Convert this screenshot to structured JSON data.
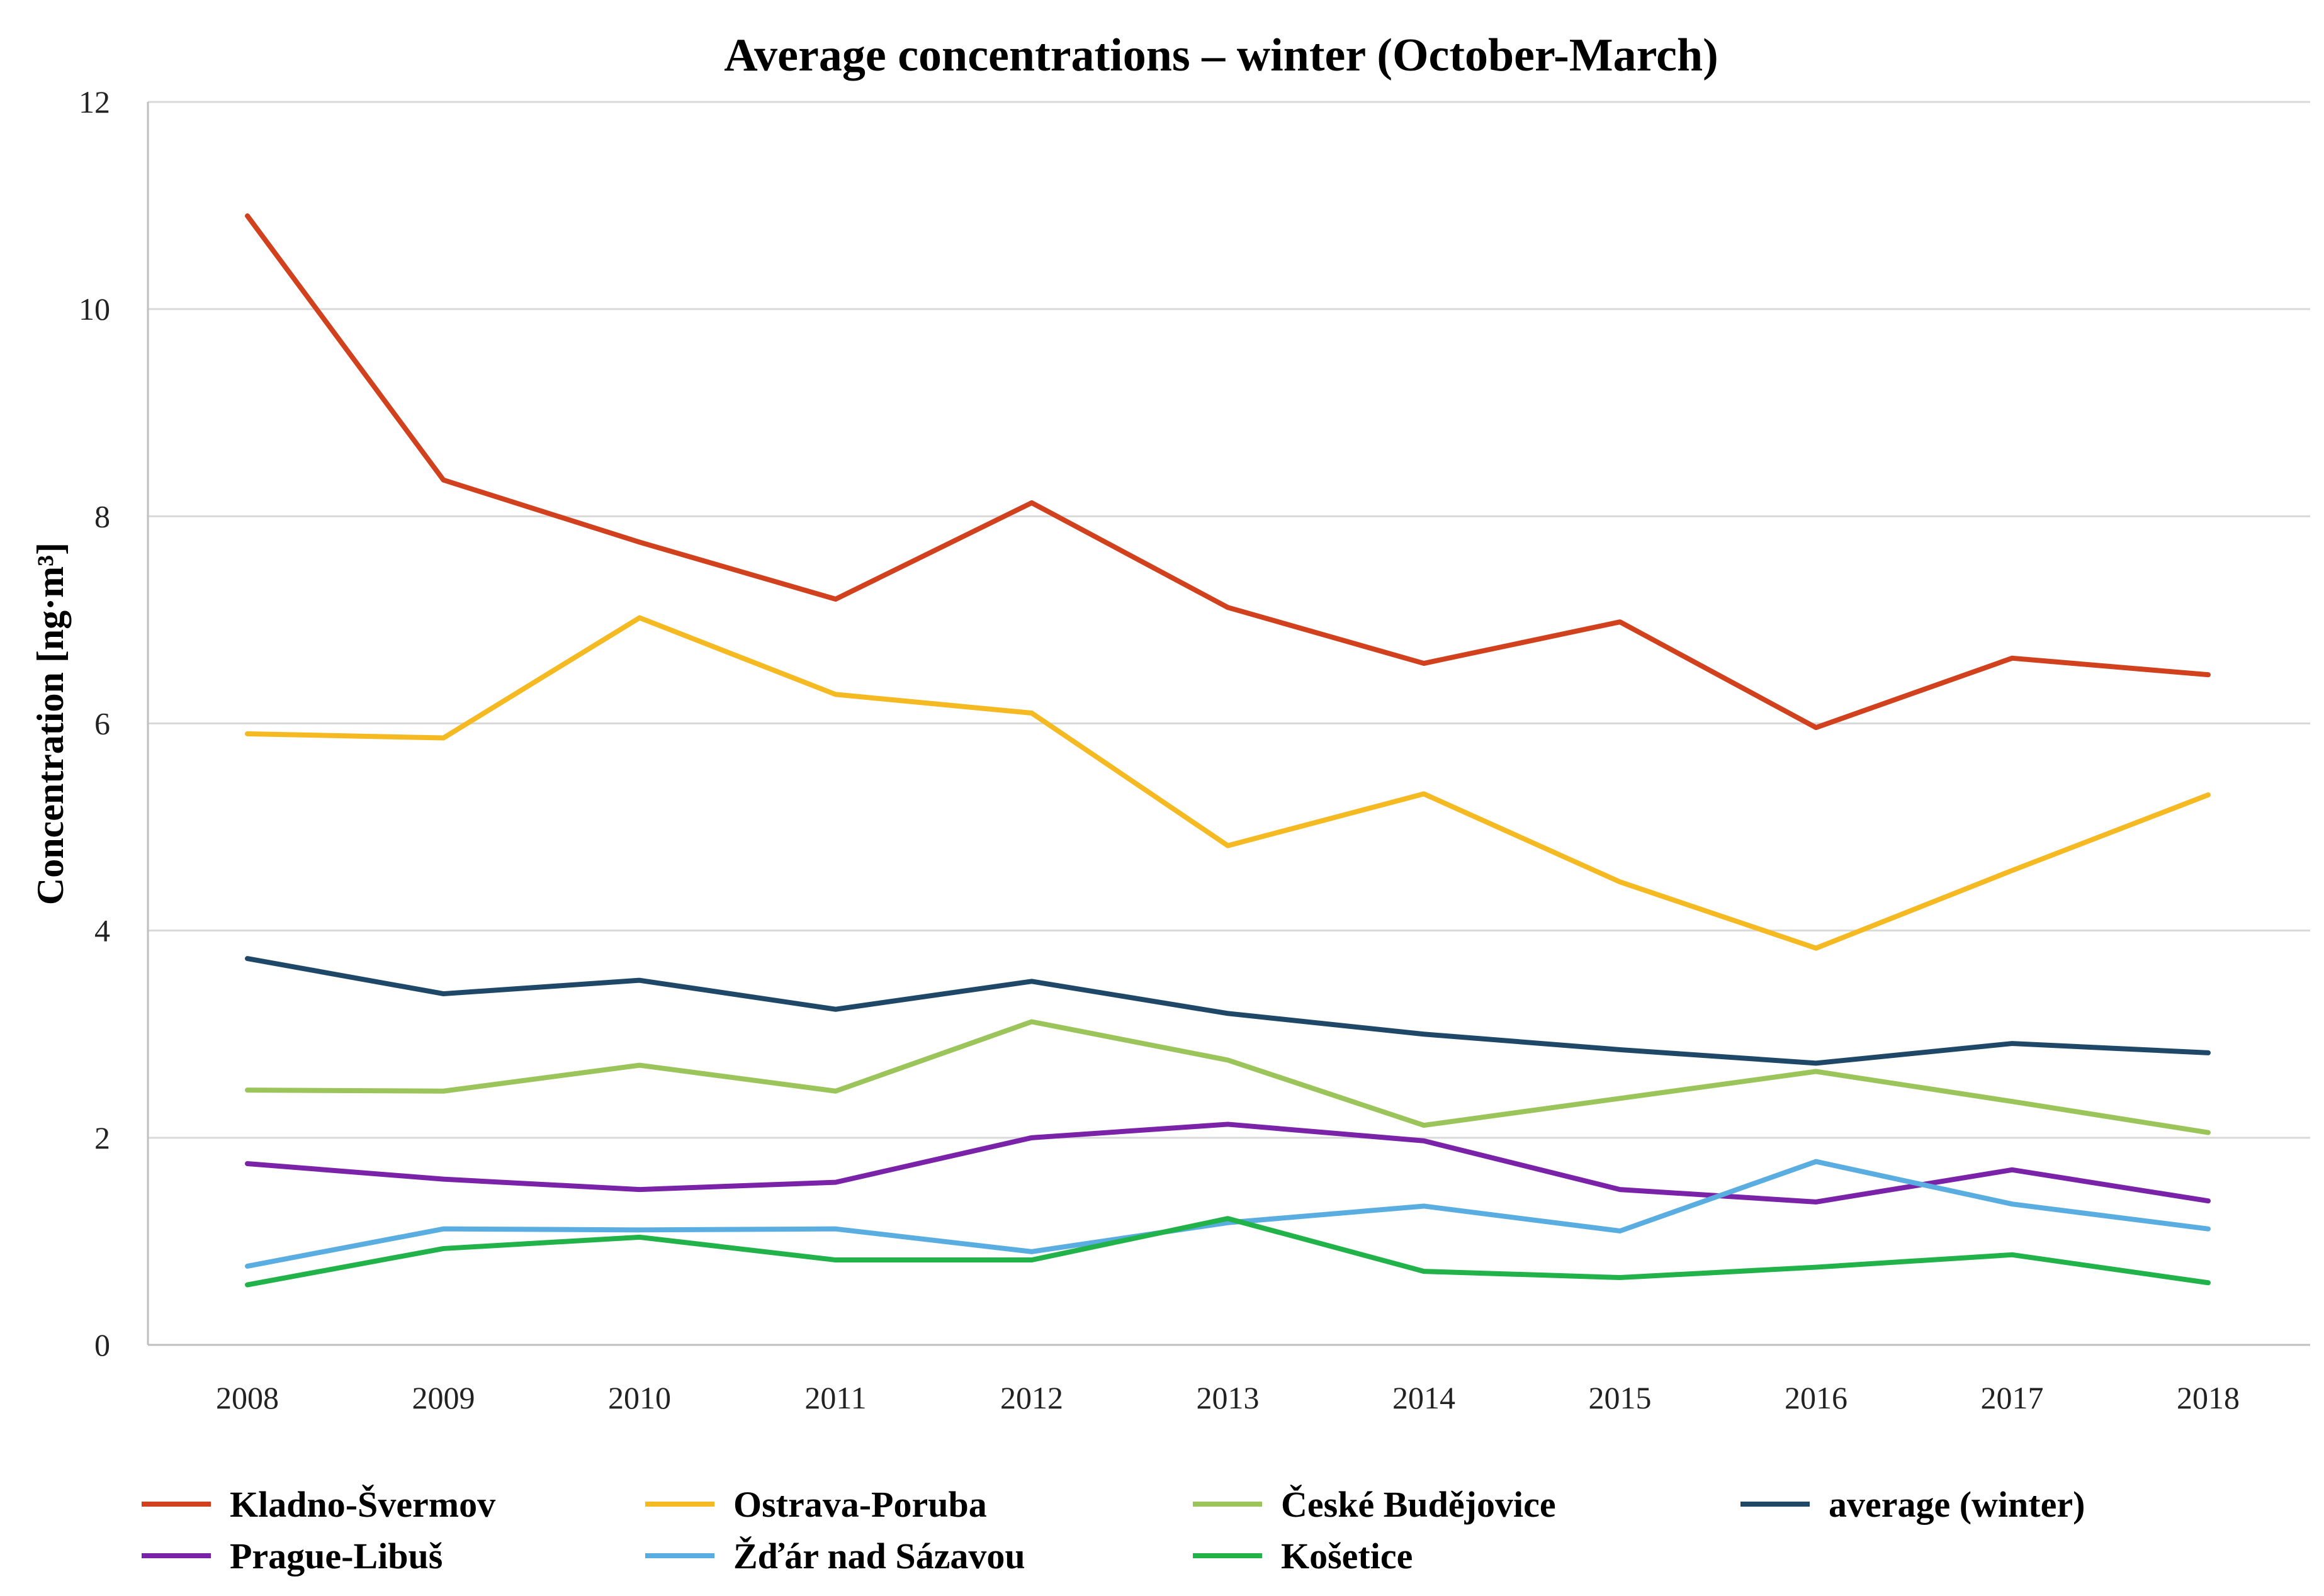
{
  "chart_data": {
    "type": "line",
    "title": "Average concentrations – winter (October-March)",
    "xlabel": "",
    "ylabel": "Concentration [ng·m³]",
    "ylim": [
      0,
      12
    ],
    "yticks": [
      0,
      2,
      4,
      6,
      8,
      10,
      12
    ],
    "grid": true,
    "legend_position": "bottom",
    "categories": [
      "2008",
      "2009",
      "2010",
      "2011",
      "2012",
      "2013",
      "2014",
      "2015",
      "2016",
      "2017",
      "2018"
    ],
    "series": [
      {
        "name": "Kladno-Švermov",
        "color": "#d2411d",
        "values": [
          10.9,
          8.35,
          7.75,
          7.2,
          8.13,
          7.12,
          6.58,
          6.98,
          5.96,
          6.63,
          6.47
        ]
      },
      {
        "name": "Ostrava-Poruba",
        "color": "#f5b922",
        "values": [
          5.9,
          5.86,
          7.02,
          6.28,
          6.1,
          4.82,
          5.32,
          4.47,
          3.83,
          4.58,
          5.31
        ]
      },
      {
        "name": "České Budějovice",
        "color": "#9bc55a",
        "values": [
          2.46,
          2.45,
          2.7,
          2.45,
          3.12,
          2.75,
          2.12,
          2.38,
          2.64,
          2.35,
          2.05
        ]
      },
      {
        "name": "average (winter)",
        "color": "#1f4868",
        "values": [
          3.73,
          3.39,
          3.52,
          3.24,
          3.51,
          3.2,
          3.0,
          2.85,
          2.72,
          2.91,
          2.82
        ]
      },
      {
        "name": "Prague-Libuš",
        "color": "#7a22a8",
        "values": [
          1.75,
          1.6,
          1.5,
          1.57,
          2.0,
          2.13,
          1.97,
          1.5,
          1.38,
          1.69,
          1.39
        ]
      },
      {
        "name": "Žďár nad Sázavou",
        "color": "#5aade0",
        "values": [
          0.76,
          1.12,
          1.11,
          1.12,
          0.9,
          1.18,
          1.34,
          1.1,
          1.77,
          1.36,
          1.12
        ]
      },
      {
        "name": "Košetice",
        "color": "#21b24a",
        "values": [
          0.58,
          0.93,
          1.04,
          0.82,
          0.82,
          1.22,
          0.71,
          0.65,
          0.75,
          0.87,
          0.6
        ]
      }
    ]
  }
}
